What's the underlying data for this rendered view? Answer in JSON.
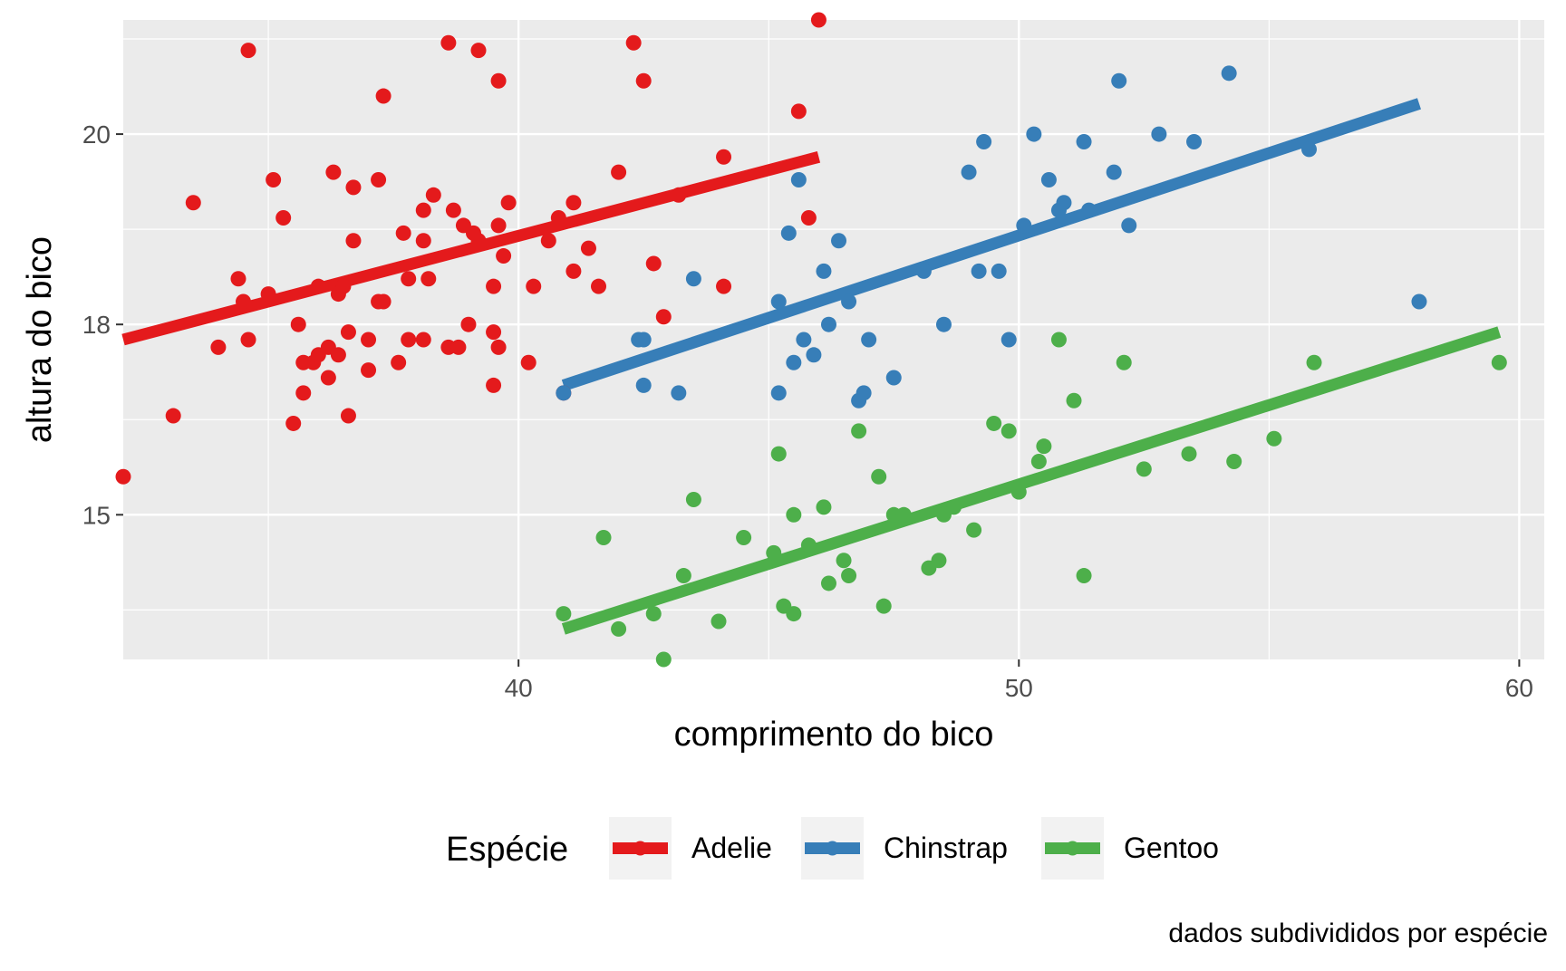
{
  "chart_data": {
    "type": "scatter",
    "title": "",
    "xlabel": "comprimento do bico",
    "ylabel": "altura do bico",
    "caption": "dados subdivididos por espécie",
    "xlim": [
      32.1,
      60.5
    ],
    "ylim": [
      13.1,
      21.5
    ],
    "x_ticks": [
      40,
      50,
      60
    ],
    "y_ticks": [
      15,
      17.5,
      20
    ],
    "x_tick_labels": [
      "40",
      "50",
      "60"
    ],
    "y_tick_labels": [
      "15",
      "18",
      "20"
    ],
    "grid": true,
    "legend": {
      "title": "Espécie",
      "position": "bottom"
    },
    "series": [
      {
        "name": "Adelie",
        "color": "#E41A1C",
        "fit": {
          "x": [
            32.1,
            46.0
          ],
          "y": [
            17.3,
            19.7
          ]
        },
        "points": [
          [
            32.1,
            15.5
          ],
          [
            33.1,
            16.3
          ],
          [
            33.5,
            19.1
          ],
          [
            34.0,
            17.2
          ],
          [
            34.4,
            18.1
          ],
          [
            34.5,
            17.8
          ],
          [
            34.6,
            21.1
          ],
          [
            34.6,
            17.3
          ],
          [
            35.0,
            17.9
          ],
          [
            35.1,
            19.4
          ],
          [
            35.3,
            18.9
          ],
          [
            35.5,
            16.2
          ],
          [
            35.6,
            17.5
          ],
          [
            35.7,
            16.6
          ],
          [
            35.7,
            17.0
          ],
          [
            35.9,
            17.0
          ],
          [
            36.0,
            18.0
          ],
          [
            36.0,
            17.1
          ],
          [
            36.2,
            16.8
          ],
          [
            36.2,
            17.2
          ],
          [
            36.3,
            19.5
          ],
          [
            36.4,
            17.1
          ],
          [
            36.4,
            17.9
          ],
          [
            36.5,
            18.0
          ],
          [
            36.6,
            16.3
          ],
          [
            36.6,
            17.4
          ],
          [
            36.7,
            18.6
          ],
          [
            36.7,
            19.3
          ],
          [
            37.0,
            16.9
          ],
          [
            37.0,
            17.3
          ],
          [
            37.2,
            17.8
          ],
          [
            37.2,
            19.4
          ],
          [
            37.3,
            17.8
          ],
          [
            37.3,
            20.5
          ],
          [
            37.6,
            17.0
          ],
          [
            37.7,
            18.7
          ],
          [
            37.8,
            17.3
          ],
          [
            37.8,
            18.1
          ],
          [
            38.1,
            17.3
          ],
          [
            38.1,
            18.6
          ],
          [
            38.1,
            19.0
          ],
          [
            38.2,
            18.1
          ],
          [
            38.3,
            19.2
          ],
          [
            38.6,
            17.2
          ],
          [
            38.6,
            21.2
          ],
          [
            38.7,
            19.0
          ],
          [
            38.8,
            17.2
          ],
          [
            38.9,
            18.8
          ],
          [
            39.0,
            17.5
          ],
          [
            39.1,
            18.7
          ],
          [
            39.2,
            18.6
          ],
          [
            39.2,
            21.1
          ],
          [
            39.5,
            17.4
          ],
          [
            39.5,
            18.0
          ],
          [
            39.5,
            16.7
          ],
          [
            39.6,
            17.2
          ],
          [
            39.6,
            18.8
          ],
          [
            39.6,
            20.7
          ],
          [
            39.7,
            18.4
          ],
          [
            39.8,
            19.1
          ],
          [
            40.2,
            17.0
          ],
          [
            40.3,
            18.0
          ],
          [
            40.6,
            18.6
          ],
          [
            40.8,
            18.9
          ],
          [
            40.9,
            16.6
          ],
          [
            41.1,
            18.2
          ],
          [
            41.1,
            19.1
          ],
          [
            41.4,
            18.5
          ],
          [
            41.6,
            18.0
          ],
          [
            42.0,
            19.5
          ],
          [
            42.3,
            21.2
          ],
          [
            42.5,
            20.7
          ],
          [
            42.7,
            18.3
          ],
          [
            42.9,
            17.6
          ],
          [
            43.2,
            19.2
          ],
          [
            44.1,
            18.0
          ],
          [
            44.1,
            19.7
          ],
          [
            45.6,
            20.3
          ],
          [
            45.8,
            18.9
          ],
          [
            46.0,
            21.5
          ]
        ]
      },
      {
        "name": "Chinstrap",
        "color": "#377EB8",
        "fit": {
          "x": [
            40.9,
            58.0
          ],
          "y": [
            16.7,
            20.4
          ]
        },
        "points": [
          [
            40.9,
            16.6
          ],
          [
            42.4,
            17.3
          ],
          [
            42.5,
            17.3
          ],
          [
            42.5,
            16.7
          ],
          [
            43.2,
            16.6
          ],
          [
            43.5,
            18.1
          ],
          [
            45.2,
            17.8
          ],
          [
            45.2,
            16.6
          ],
          [
            45.4,
            18.7
          ],
          [
            45.5,
            17.0
          ],
          [
            45.6,
            19.4
          ],
          [
            45.7,
            17.3
          ],
          [
            45.9,
            17.1
          ],
          [
            46.1,
            18.2
          ],
          [
            46.2,
            17.5
          ],
          [
            46.4,
            18.6
          ],
          [
            46.6,
            17.8
          ],
          [
            46.8,
            16.5
          ],
          [
            46.9,
            16.6
          ],
          [
            47.0,
            17.3
          ],
          [
            47.5,
            16.8
          ],
          [
            48.1,
            18.2
          ],
          [
            48.5,
            17.5
          ],
          [
            49.0,
            19.5
          ],
          [
            49.2,
            18.2
          ],
          [
            49.3,
            19.9
          ],
          [
            49.6,
            18.2
          ],
          [
            49.8,
            17.3
          ],
          [
            50.1,
            18.8
          ],
          [
            50.3,
            20.0
          ],
          [
            50.6,
            19.4
          ],
          [
            50.8,
            19.0
          ],
          [
            50.9,
            19.1
          ],
          [
            51.3,
            19.9
          ],
          [
            51.4,
            19.0
          ],
          [
            51.9,
            19.5
          ],
          [
            52.0,
            20.7
          ],
          [
            52.2,
            18.8
          ],
          [
            52.8,
            20.0
          ],
          [
            53.5,
            19.9
          ],
          [
            54.2,
            20.8
          ],
          [
            55.8,
            19.8
          ],
          [
            58.0,
            17.8
          ]
        ]
      },
      {
        "name": "Gentoo",
        "color": "#4DAF4A",
        "fit": {
          "x": [
            40.9,
            59.6
          ],
          "y": [
            13.5,
            17.4
          ]
        },
        "points": [
          [
            40.9,
            13.7
          ],
          [
            41.7,
            14.7
          ],
          [
            42.0,
            13.5
          ],
          [
            42.7,
            13.7
          ],
          [
            42.9,
            13.1
          ],
          [
            43.3,
            14.2
          ],
          [
            43.5,
            15.2
          ],
          [
            44.0,
            13.6
          ],
          [
            44.5,
            14.7
          ],
          [
            45.1,
            14.5
          ],
          [
            45.2,
            15.8
          ],
          [
            45.3,
            13.8
          ],
          [
            45.5,
            13.7
          ],
          [
            45.5,
            15.0
          ],
          [
            45.8,
            14.6
          ],
          [
            46.1,
            15.1
          ],
          [
            46.2,
            14.1
          ],
          [
            46.5,
            14.4
          ],
          [
            46.6,
            14.2
          ],
          [
            46.8,
            16.1
          ],
          [
            47.2,
            15.5
          ],
          [
            47.3,
            13.8
          ],
          [
            47.5,
            15.0
          ],
          [
            47.7,
            15.0
          ],
          [
            48.2,
            14.3
          ],
          [
            48.4,
            14.4
          ],
          [
            48.5,
            15.0
          ],
          [
            48.7,
            15.1
          ],
          [
            49.1,
            14.8
          ],
          [
            49.5,
            16.2
          ],
          [
            49.8,
            16.1
          ],
          [
            50.0,
            15.3
          ],
          [
            50.4,
            15.7
          ],
          [
            50.5,
            15.9
          ],
          [
            50.8,
            17.3
          ],
          [
            51.1,
            16.5
          ],
          [
            51.3,
            14.2
          ],
          [
            52.1,
            17.0
          ],
          [
            52.5,
            15.6
          ],
          [
            53.4,
            15.8
          ],
          [
            54.3,
            15.7
          ],
          [
            55.1,
            16.0
          ],
          [
            55.9,
            17.0
          ],
          [
            59.6,
            17.0
          ]
        ]
      }
    ]
  }
}
